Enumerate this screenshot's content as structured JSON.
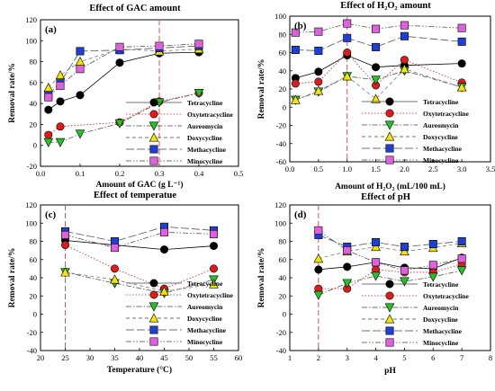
{
  "figure": {
    "styles": {
      "Tetracycline": {
        "color": "#000000",
        "marker": "circle",
        "dash": "none"
      },
      "Oxytetracycline": {
        "color": "#e31a1c",
        "marker": "circle",
        "dash": "1.5,2"
      },
      "Aureomycin": {
        "color": "#22c322",
        "marker": "tri-down",
        "dash": "6,2,1.5,2"
      },
      "Doxycycline": {
        "color": "#f0e600",
        "marker": "tri-up",
        "dash": "4,3"
      },
      "Methacycline": {
        "color": "#1f3fd8",
        "marker": "square",
        "dash": "9,3"
      },
      "Minocycline": {
        "color": "#e060e0",
        "marker": "square",
        "dash": "6,2,1.5,2,1.5,2"
      }
    },
    "vline_color": "#e05050"
  },
  "chart_data": [
    {
      "type": "line",
      "panel_label": "(a)",
      "title": "Effect of  GAC amount",
      "xlabel": "Amount of GAC (g L⁻¹)",
      "ylabel": "Removal rate/%",
      "xlim": [
        0.0,
        0.5
      ],
      "ylim": [
        -20,
        120
      ],
      "xticks": [
        "0.0",
        "0.1",
        "0.2",
        "0.3",
        "0.4",
        "0.5"
      ],
      "yticks": [
        "-20",
        "0",
        "20",
        "40",
        "60",
        "80",
        "100",
        "120"
      ],
      "vline": 0.3,
      "legend_position": "bottom-right",
      "series": [
        {
          "name": "Tetracycline",
          "x": [
            0.02,
            0.05,
            0.1,
            0.2,
            0.3,
            0.4
          ],
          "values": [
            34,
            42,
            48,
            79,
            88,
            89
          ]
        },
        {
          "name": "Oxytetracycline",
          "x": [
            0.02,
            0.05,
            0.1,
            0.2,
            0.3,
            0.4
          ],
          "values": [
            10,
            18,
            null,
            22,
            42,
            50
          ]
        },
        {
          "name": "Aureomycin",
          "x": [
            0.02,
            0.05,
            0.1,
            0.2,
            0.3,
            0.4
          ],
          "values": [
            3,
            3,
            11,
            21,
            41,
            50
          ]
        },
        {
          "name": "Doxycycline",
          "x": [
            0.02,
            0.05,
            0.1,
            0.2,
            0.3,
            0.4
          ],
          "values": [
            55,
            67,
            80,
            92,
            90,
            92
          ]
        },
        {
          "name": "Methacycline",
          "x": [
            0.02,
            0.05,
            0.1,
            0.2,
            0.3,
            0.4
          ],
          "values": [
            48,
            60,
            90,
            91,
            93,
            95
          ]
        },
        {
          "name": "Minocycline",
          "x": [
            0.02,
            0.05,
            0.1,
            0.2,
            0.3,
            0.4
          ],
          "values": [
            46,
            57,
            73,
            94,
            95,
            97
          ]
        }
      ]
    },
    {
      "type": "line",
      "panel_label": "(b)",
      "title": "Effect of  H₂O₂ amount",
      "xlabel": "Amount of H₂O₂ (mL/100 mL)",
      "ylabel": "Removal rate/%",
      "xlim": [
        0.0,
        3.5
      ],
      "ylim": [
        -60,
        100
      ],
      "xticks": [
        "0.0",
        "0.5",
        "1.0",
        "1.5",
        "2.0",
        "2.5",
        "3.0",
        "3.5"
      ],
      "yticks": [
        "-60",
        "-40",
        "-20",
        "0",
        "20",
        "40",
        "60",
        "80",
        "100"
      ],
      "vline": 1.0,
      "legend_position": "bottom-right",
      "series": [
        {
          "name": "Tetracycline",
          "x": [
            0.1,
            0.5,
            1.0,
            1.5,
            2.0,
            3.0
          ],
          "values": [
            32,
            39,
            57,
            44,
            46,
            48
          ]
        },
        {
          "name": "Oxytetracycline",
          "x": [
            0.1,
            0.5,
            1.0,
            1.5,
            2.0,
            3.0
          ],
          "values": [
            26,
            28,
            60,
            24,
            52,
            27
          ]
        },
        {
          "name": "Aureomycin",
          "x": [
            0.1,
            0.5,
            1.0,
            1.5,
            2.0,
            3.0
          ],
          "values": [
            8,
            17,
            34,
            30,
            40,
            22
          ]
        },
        {
          "name": "Doxycycline",
          "x": [
            0.1,
            0.5,
            1.0,
            1.5,
            2.0,
            3.0
          ],
          "values": [
            8,
            18,
            34,
            9,
            42,
            22
          ]
        },
        {
          "name": "Methacycline",
          "x": [
            0.1,
            0.5,
            1.0,
            1.5,
            2.0,
            3.0
          ],
          "values": [
            63,
            62,
            76,
            66,
            78,
            72
          ]
        },
        {
          "name": "Minocycline",
          "x": [
            0.1,
            0.5,
            1.0,
            1.5,
            2.0,
            3.0
          ],
          "values": [
            82,
            83,
            92,
            86,
            90,
            87
          ]
        }
      ]
    },
    {
      "type": "line",
      "panel_label": "(c)",
      "title": "Effect of temperatue",
      "xlabel": "Temperature (°C)",
      "ylabel": "Removal rate/%",
      "xlim": [
        20,
        60
      ],
      "ylim": [
        -40,
        120
      ],
      "xticks": [
        "20",
        "25",
        "30",
        "35",
        "40",
        "45",
        "50",
        "55",
        "60"
      ],
      "yticks": [
        "-40",
        "-20",
        "0",
        "20",
        "40",
        "60",
        "80",
        "100",
        "120"
      ],
      "vline": 25,
      "legend_position": "bottom-right",
      "series": [
        {
          "name": "Tetracycline",
          "x": [
            25,
            35,
            45,
            55
          ],
          "values": [
            81,
            76,
            71,
            75
          ]
        },
        {
          "name": "Oxytetracycline",
          "x": [
            25,
            35,
            45,
            55
          ],
          "values": [
            76,
            50,
            28,
            50
          ]
        },
        {
          "name": "Aureomycin",
          "x": [
            25,
            35,
            45,
            55
          ],
          "values": [
            46,
            34,
            23,
            38
          ]
        },
        {
          "name": "Doxycycline",
          "x": [
            25,
            35,
            45,
            55
          ],
          "values": [
            46,
            38,
            25,
            33
          ]
        },
        {
          "name": "Methacycline",
          "x": [
            25,
            35,
            45,
            55
          ],
          "values": [
            91,
            80,
            96,
            92
          ]
        },
        {
          "name": "Minocycline",
          "x": [
            25,
            35,
            45,
            55
          ],
          "values": [
            87,
            73,
            90,
            88
          ]
        }
      ]
    },
    {
      "type": "line",
      "panel_label": "(d)",
      "title": "Effect of pH",
      "xlabel": "pH",
      "ylabel": "Removal rate/%",
      "xlim": [
        1,
        8
      ],
      "ylim": [
        -40,
        120
      ],
      "xticks": [
        "1",
        "2",
        "3",
        "4",
        "5",
        "6",
        "7",
        "8"
      ],
      "yticks": [
        "-40",
        "-20",
        "0",
        "20",
        "40",
        "60",
        "80",
        "100",
        "120"
      ],
      "vline": 2,
      "legend_position": "bottom-right",
      "series": [
        {
          "name": "Tetracycline",
          "x": [
            2,
            3,
            4,
            5,
            6,
            7
          ],
          "values": [
            49,
            52,
            57,
            51,
            50,
            62
          ]
        },
        {
          "name": "Oxytetracycline",
          "x": [
            2,
            3,
            4,
            5,
            6,
            7
          ],
          "values": [
            28,
            28,
            49,
            46,
            46,
            55
          ]
        },
        {
          "name": "Aureomycin",
          "x": [
            2,
            3,
            4,
            5,
            6,
            7
          ],
          "values": [
            21,
            34,
            42,
            36,
            41,
            48
          ]
        },
        {
          "name": "Doxycycline",
          "x": [
            2,
            3,
            4,
            5,
            6,
            7
          ],
          "values": [
            61,
            69,
            74,
            69,
            73,
            78
          ]
        },
        {
          "name": "Methacycline",
          "x": [
            2,
            3,
            4,
            5,
            6,
            7
          ],
          "values": [
            87,
            74,
            79,
            74,
            77,
            80
          ]
        },
        {
          "name": "Minocycline",
          "x": [
            2,
            3,
            4,
            5,
            6,
            7
          ],
          "values": [
            92,
            70,
            57,
            48,
            54,
            61
          ]
        }
      ]
    }
  ]
}
